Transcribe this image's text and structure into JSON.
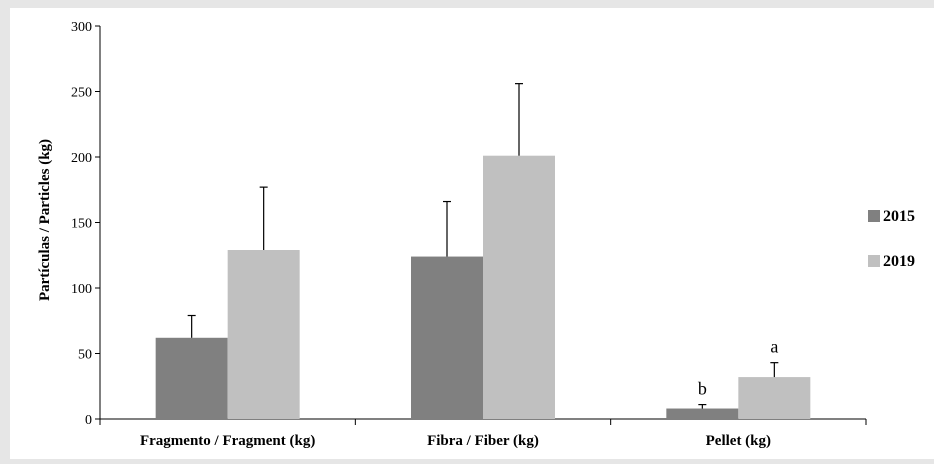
{
  "chart_data": {
    "type": "bar",
    "title": "",
    "xlabel": "",
    "ylabel": "Partículas / Particles (kg)",
    "ylim": [
      0,
      300
    ],
    "yticks": [
      "0",
      "50",
      "100",
      "150",
      "200",
      "250",
      "300"
    ],
    "categories": [
      "Fragmento / Fragment (kg)",
      "Fibra / Fiber (kg)",
      "Pellet (kg)"
    ],
    "series": [
      {
        "name": "2015",
        "color": "#808080",
        "values": [
          62,
          124,
          8
        ],
        "errors": [
          17,
          42,
          3
        ],
        "annotations": [
          "",
          "",
          "b"
        ]
      },
      {
        "name": "2019",
        "color": "#c0c0c0",
        "values": [
          129,
          201,
          32
        ],
        "errors": [
          48,
          55,
          11
        ],
        "annotations": [
          "",
          "",
          "a"
        ]
      }
    ],
    "error_bars": "upper",
    "grid": false,
    "legend_position": "right"
  }
}
